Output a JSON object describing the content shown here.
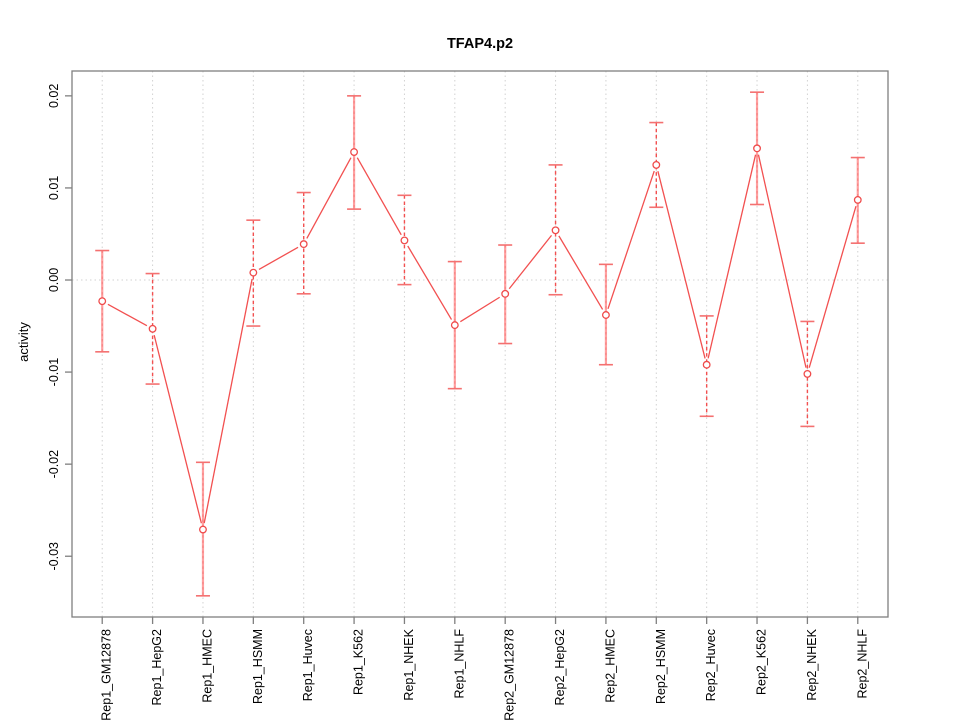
{
  "window": {
    "background_color": "#ffffff"
  },
  "chart_data": {
    "type": "line",
    "title": "TFAP4.p2",
    "xlabel": "",
    "ylabel": "activity",
    "legend": "none",
    "grid": {
      "vertical_dotted_at_each_category": true,
      "horizontal_dotted_at_zero": true
    },
    "marker": "open-circle",
    "error_bars": true,
    "categories": [
      "Rep1_GM12878",
      "Rep1_HepG2",
      "Rep1_HMEC",
      "Rep1_HSMM",
      "Rep1_Huvec",
      "Rep1_K562",
      "Rep1_NHEK",
      "Rep1_NHLF",
      "Rep2_GM12878",
      "Rep2_HepG2",
      "Rep2_HMEC",
      "Rep2_HSMM",
      "Rep2_Huvec",
      "Rep2_K562",
      "Rep2_NHEK",
      "Rep2_NHLF"
    ],
    "series": [
      {
        "name": "activity",
        "values": [
          -0.0023,
          -0.0053,
          -0.0271,
          0.0008,
          0.0039,
          0.0139,
          0.0043,
          -0.0049,
          -0.0015,
          0.0054,
          -0.0038,
          0.0125,
          -0.0092,
          0.0143,
          -0.0102,
          0.0087
        ],
        "upper": [
          0.0032,
          0.0007,
          -0.0198,
          0.0065,
          0.0095,
          0.02,
          0.0092,
          0.002,
          0.0038,
          0.0125,
          0.0017,
          0.0171,
          -0.0039,
          0.0204,
          -0.0045,
          0.0133
        ],
        "lower": [
          -0.0078,
          -0.0113,
          -0.0343,
          -0.005,
          -0.0015,
          0.0077,
          -0.0005,
          -0.0118,
          -0.0069,
          -0.0016,
          -0.0092,
          0.0079,
          -0.0148,
          0.0082,
          -0.0159,
          0.004
        ],
        "stem_styles": [
          "solid",
          "dashed",
          "solid",
          "dashed",
          "dashed",
          "solid",
          "dashed",
          "solid",
          "solid",
          "dashed",
          "solid",
          "dashed",
          "dashed",
          "solid",
          "dashed",
          "solid"
        ]
      }
    ],
    "ylim": [
      -0.0366,
      0.0227
    ],
    "yticks": [
      0.02,
      0.01,
      0,
      -0.01,
      -0.02,
      -0.03
    ],
    "ytick_labels": [
      "0.02",
      "0.01",
      "0.00",
      "-0.01",
      "-0.02",
      "-0.03"
    ],
    "colors": {
      "line": "#f25050",
      "point_stroke": "#ef4b4b",
      "point_fill": "#ffffff",
      "stem_solid": "#ffa0a0",
      "stem_overlay": "#e86060",
      "cap": "#f47070",
      "grid": "#d2d2d2",
      "box": "#7f7f7f",
      "tick": "#7f7f7f",
      "text": "#000000"
    }
  }
}
